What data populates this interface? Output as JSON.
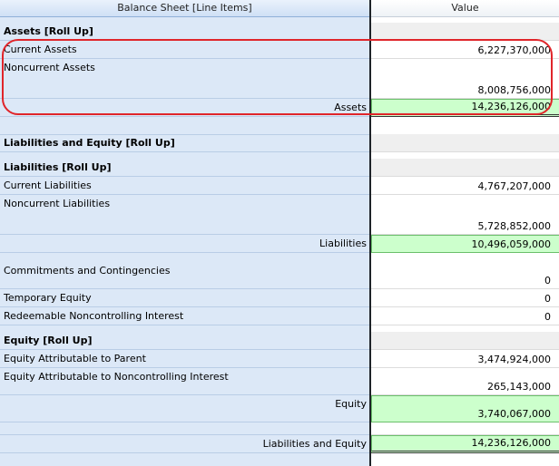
{
  "header": {
    "label_col": "Balance Sheet [Line Items]",
    "value_col": "Value"
  },
  "rows": {
    "assets_rollup": {
      "label": "Assets [Roll Up]",
      "value": ""
    },
    "current_assets": {
      "label": "Current Assets",
      "value": "6,227,370,000"
    },
    "noncurrent_assets": {
      "label": "Noncurrent Assets",
      "value": "8,008,756,000"
    },
    "assets": {
      "label": "Assets",
      "value": "14,236,126,000"
    },
    "liab_equity_rollup": {
      "label": "Liabilities and Equity [Roll Up]",
      "value": ""
    },
    "liabilities_rollup": {
      "label": "Liabilities [Roll Up]",
      "value": ""
    },
    "current_liabilities": {
      "label": "Current Liabilities",
      "value": "4,767,207,000"
    },
    "noncurrent_liabilities": {
      "label": "Noncurrent Liabilities",
      "value": "5,728,852,000"
    },
    "liabilities": {
      "label": "Liabilities",
      "value": "10,496,059,000"
    },
    "commitments": {
      "label": "Commitments and Contingencies",
      "value": "0"
    },
    "temporary_equity": {
      "label": "Temporary Equity",
      "value": "0"
    },
    "redeemable_nci": {
      "label": "Redeemable Noncontrolling Interest",
      "value": "0"
    },
    "equity_rollup": {
      "label": "Equity [Roll Up]",
      "value": ""
    },
    "equity_parent": {
      "label": "Equity Attributable to Parent",
      "value": "3,474,924,000"
    },
    "equity_nci": {
      "label": "Equity Attributable to Noncontrolling Interest",
      "value": "265,143,000"
    },
    "equity": {
      "label": "Equity",
      "value": "3,740,067,000"
    },
    "liab_and_equity": {
      "label": "Liabilities and Equity",
      "value": "14,236,126,000"
    }
  },
  "colors": {
    "label_column": "#dce8f7",
    "total_fill": "#ccffcc",
    "section_value_fill": "#efefef",
    "highlight_outline": "#e0252a"
  }
}
